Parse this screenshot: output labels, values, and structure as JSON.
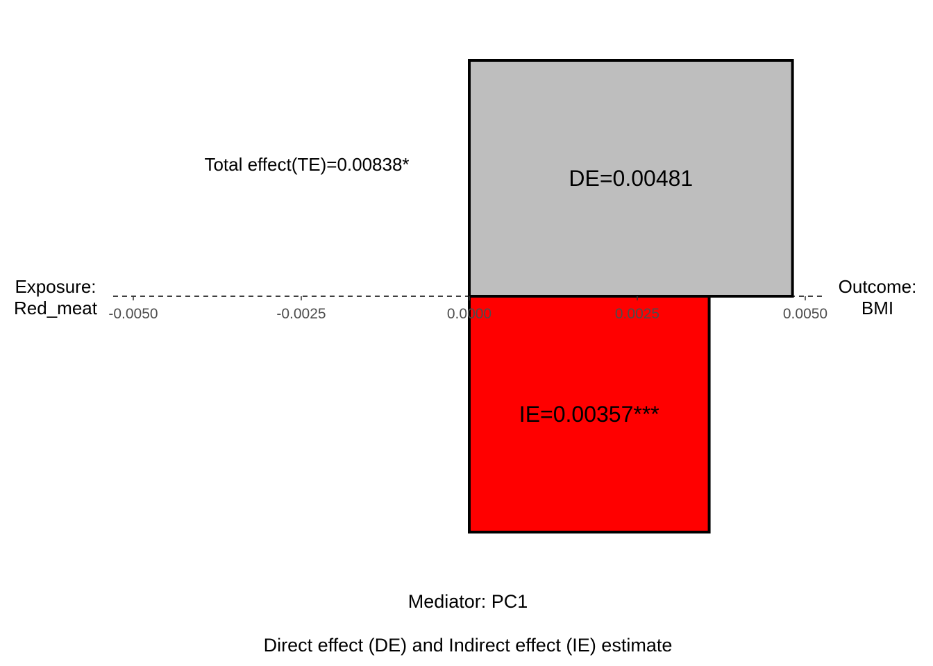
{
  "chart_data": {
    "type": "bar",
    "x_ticks": [
      "-0.0050",
      "-0.0025",
      "0.0000",
      "0.0025",
      "0.0050"
    ],
    "x_tick_values": [
      -0.005,
      -0.0025,
      0,
      0.0025,
      0.005
    ],
    "xlim": [
      -0.0053,
      0.0053
    ],
    "exposure": {
      "line1": "Exposure:",
      "line2": "Red_meat"
    },
    "outcome": {
      "line1": "Outcome:",
      "line2": "BMI"
    },
    "total_effect": {
      "value": 0.00838,
      "label": "Total effect(TE)=0.00838*"
    },
    "bars": [
      {
        "name": "DE",
        "value": 0.00481,
        "label": "DE=0.00481",
        "color": "#bebebe",
        "side": "above"
      },
      {
        "name": "IE",
        "value": 0.00357,
        "label": "IE=0.00357***",
        "color": "#ff0000",
        "side": "below"
      }
    ],
    "mediator": "Mediator: PC1",
    "caption": "Direct effect (DE) and Indirect effect (IE) estimate",
    "grid": false
  }
}
